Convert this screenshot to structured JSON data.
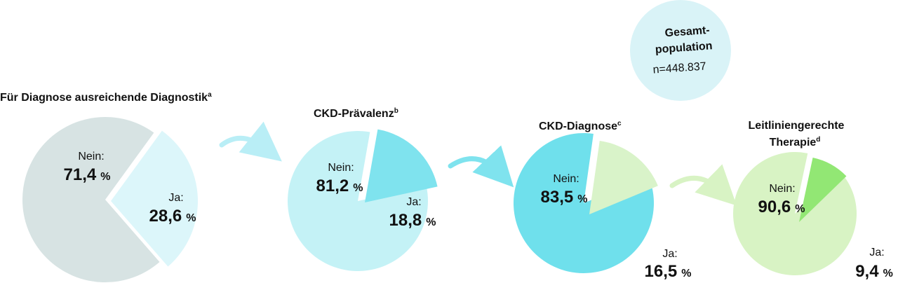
{
  "population": {
    "title_line1": "Gesamt-",
    "title_line2": "population",
    "n": "n=448.837",
    "color": "#d9f3f7"
  },
  "chart_data": [
    {
      "type": "pie",
      "title": "Für Diagnose ausreichende Diagnostik",
      "superscript": "a",
      "slices": [
        {
          "label": "Nein:",
          "value": 71.4,
          "display": "71,4",
          "color": "#d7e3e3"
        },
        {
          "label": "Ja:",
          "value": 28.6,
          "display": "28,6",
          "color": "#dcf6fa"
        }
      ]
    },
    {
      "type": "pie",
      "title": "CKD-Prävalenz",
      "superscript": "b",
      "slices": [
        {
          "label": "Nein:",
          "value": 81.2,
          "display": "81,2",
          "color": "#c4f2f6"
        },
        {
          "label": "Ja:",
          "value": 18.8,
          "display": "18,8",
          "color": "#7fe3ee"
        }
      ]
    },
    {
      "type": "pie",
      "title": "CKD-Diagnose",
      "superscript": "c",
      "slices": [
        {
          "label": "Nein:",
          "value": 83.5,
          "display": "83,5",
          "color": "#6fe0ec"
        },
        {
          "label": "Ja:",
          "value": 16.5,
          "display": "16,5",
          "color": "#d9f3c9"
        }
      ]
    },
    {
      "type": "pie",
      "title_lines": [
        "Leitliniengerechte",
        "Therapie"
      ],
      "superscript": "d",
      "slices": [
        {
          "label": "Nein:",
          "value": 90.6,
          "display": "90,6",
          "color": "#d8f3c4"
        },
        {
          "label": "Ja:",
          "value": 9.4,
          "display": "9,4",
          "color": "#92e774"
        }
      ]
    }
  ],
  "percent_sign": "%",
  "arrow_colors": [
    "#b9eef6",
    "#7fe3ee",
    "#d8f3c4"
  ]
}
